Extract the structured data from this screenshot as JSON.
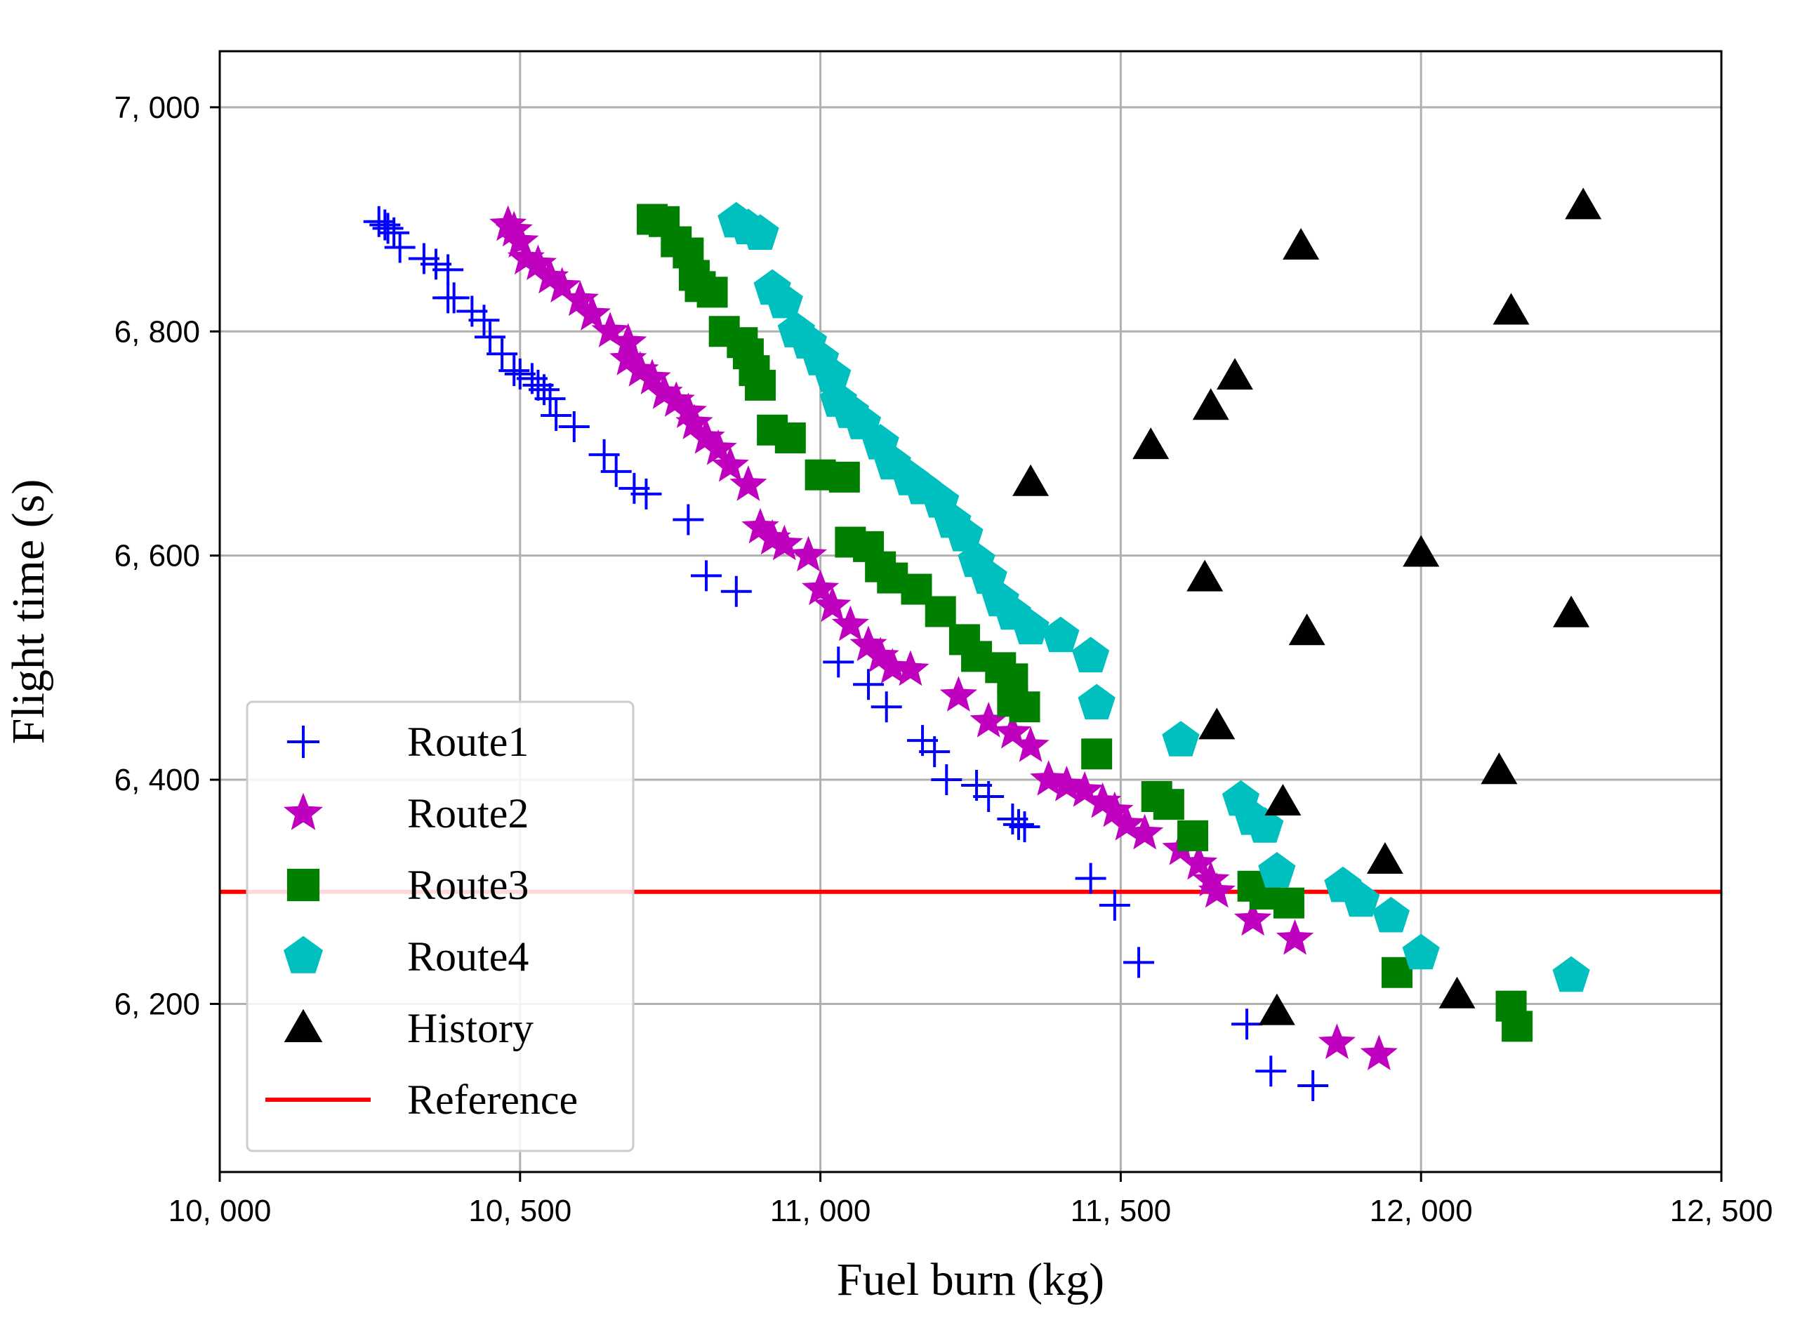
{
  "chart_data": {
    "type": "scatter",
    "xlabel": "Fuel burn (kg)",
    "ylabel": "Flight time (s)",
    "xlim": [
      10000,
      12500
    ],
    "ylim": [
      6050,
      7050
    ],
    "xticks": [
      10000,
      10500,
      11000,
      11500,
      12000,
      12500
    ],
    "yticks": [
      6200,
      6400,
      6600,
      6800,
      7000
    ],
    "xtick_labels": [
      "10, 000",
      "10, 500",
      "11, 000",
      "11, 500",
      "12, 000",
      "12, 500"
    ],
    "ytick_labels": [
      "6, 200",
      "6, 400",
      "6, 600",
      "6, 800",
      "7, 000"
    ],
    "grid": true,
    "legend_position": "lower-left",
    "series": [
      {
        "name": "Route1",
        "marker": "plus",
        "color": "#0000ff",
        "points": [
          [
            10265,
            6898
          ],
          [
            10275,
            6895
          ],
          [
            10280,
            6892
          ],
          [
            10290,
            6888
          ],
          [
            10300,
            6875
          ],
          [
            10340,
            6865
          ],
          [
            10360,
            6860
          ],
          [
            10380,
            6855
          ],
          [
            10380,
            6830
          ],
          [
            10390,
            6830
          ],
          [
            10420,
            6818
          ],
          [
            10440,
            6810
          ],
          [
            10450,
            6795
          ],
          [
            10470,
            6780
          ],
          [
            10490,
            6765
          ],
          [
            10500,
            6762
          ],
          [
            10520,
            6758
          ],
          [
            10530,
            6752
          ],
          [
            10540,
            6748
          ],
          [
            10550,
            6740
          ],
          [
            10560,
            6725
          ],
          [
            10590,
            6715
          ],
          [
            10640,
            6690
          ],
          [
            10660,
            6675
          ],
          [
            10690,
            6660
          ],
          [
            10710,
            6655
          ],
          [
            10780,
            6632
          ],
          [
            10810,
            6582
          ],
          [
            10860,
            6568
          ],
          [
            11030,
            6505
          ],
          [
            11080,
            6485
          ],
          [
            11110,
            6465
          ],
          [
            11170,
            6435
          ],
          [
            11190,
            6425
          ],
          [
            11210,
            6400
          ],
          [
            11260,
            6395
          ],
          [
            11280,
            6385
          ],
          [
            11320,
            6365
          ],
          [
            11330,
            6360
          ],
          [
            11340,
            6358
          ],
          [
            11450,
            6312
          ],
          [
            11490,
            6288
          ],
          [
            11530,
            6237
          ],
          [
            11710,
            6182
          ],
          [
            11750,
            6140
          ],
          [
            11820,
            6127
          ]
        ]
      },
      {
        "name": "Route2",
        "marker": "star",
        "color": "#bf00bf",
        "points": [
          [
            10480,
            6895
          ],
          [
            10490,
            6890
          ],
          [
            10500,
            6880
          ],
          [
            10510,
            6865
          ],
          [
            10530,
            6860
          ],
          [
            10550,
            6848
          ],
          [
            10570,
            6840
          ],
          [
            10600,
            6828
          ],
          [
            10620,
            6815
          ],
          [
            10650,
            6800
          ],
          [
            10680,
            6790
          ],
          [
            10680,
            6775
          ],
          [
            10700,
            6765
          ],
          [
            10720,
            6758
          ],
          [
            10740,
            6745
          ],
          [
            10760,
            6738
          ],
          [
            10780,
            6728
          ],
          [
            10790,
            6718
          ],
          [
            10810,
            6705
          ],
          [
            10830,
            6695
          ],
          [
            10850,
            6680
          ],
          [
            10880,
            6663
          ],
          [
            10900,
            6625
          ],
          [
            10920,
            6615
          ],
          [
            10940,
            6610
          ],
          [
            10980,
            6600
          ],
          [
            11000,
            6570
          ],
          [
            11020,
            6555
          ],
          [
            11050,
            6538
          ],
          [
            11080,
            6520
          ],
          [
            11100,
            6510
          ],
          [
            11120,
            6500
          ],
          [
            11150,
            6498
          ],
          [
            11230,
            6475
          ],
          [
            11280,
            6452
          ],
          [
            11320,
            6442
          ],
          [
            11350,
            6430
          ],
          [
            11380,
            6400
          ],
          [
            11410,
            6395
          ],
          [
            11440,
            6390
          ],
          [
            11470,
            6380
          ],
          [
            11490,
            6372
          ],
          [
            11510,
            6360
          ],
          [
            11540,
            6352
          ],
          [
            11600,
            6338
          ],
          [
            11630,
            6325
          ],
          [
            11650,
            6310
          ],
          [
            11660,
            6300
          ],
          [
            11720,
            6275
          ],
          [
            11790,
            6258
          ],
          [
            11860,
            6165
          ],
          [
            11930,
            6155
          ]
        ]
      },
      {
        "name": "Route3",
        "marker": "square",
        "color": "#008000",
        "points": [
          [
            10720,
            6900
          ],
          [
            10740,
            6898
          ],
          [
            10760,
            6880
          ],
          [
            10780,
            6870
          ],
          [
            10790,
            6850
          ],
          [
            10800,
            6840
          ],
          [
            10820,
            6835
          ],
          [
            10840,
            6800
          ],
          [
            10870,
            6790
          ],
          [
            10880,
            6780
          ],
          [
            10890,
            6765
          ],
          [
            10900,
            6752
          ],
          [
            10920,
            6712
          ],
          [
            10950,
            6705
          ],
          [
            11000,
            6672
          ],
          [
            11040,
            6670
          ],
          [
            11050,
            6612
          ],
          [
            11080,
            6608
          ],
          [
            11100,
            6590
          ],
          [
            11120,
            6580
          ],
          [
            11160,
            6570
          ],
          [
            11200,
            6550
          ],
          [
            11240,
            6525
          ],
          [
            11260,
            6510
          ],
          [
            11300,
            6500
          ],
          [
            11320,
            6490
          ],
          [
            11320,
            6470
          ],
          [
            11340,
            6465
          ],
          [
            11460,
            6423
          ],
          [
            11560,
            6385
          ],
          [
            11580,
            6378
          ],
          [
            11620,
            6350
          ],
          [
            11720,
            6305
          ],
          [
            11740,
            6298
          ],
          [
            11780,
            6290
          ],
          [
            11960,
            6228
          ],
          [
            12150,
            6198
          ],
          [
            12160,
            6180
          ]
        ]
      },
      {
        "name": "Route4",
        "marker": "pentagon",
        "color": "#00bfbf",
        "points": [
          [
            10860,
            6898
          ],
          [
            10880,
            6892
          ],
          [
            10900,
            6887
          ],
          [
            10920,
            6838
          ],
          [
            10940,
            6826
          ],
          [
            10960,
            6800
          ],
          [
            10980,
            6790
          ],
          [
            11000,
            6775
          ],
          [
            11020,
            6760
          ],
          [
            11030,
            6738
          ],
          [
            11050,
            6728
          ],
          [
            11070,
            6718
          ],
          [
            11100,
            6700
          ],
          [
            11120,
            6682
          ],
          [
            11150,
            6668
          ],
          [
            11170,
            6660
          ],
          [
            11200,
            6648
          ],
          [
            11220,
            6630
          ],
          [
            11240,
            6618
          ],
          [
            11260,
            6595
          ],
          [
            11280,
            6580
          ],
          [
            11300,
            6560
          ],
          [
            11320,
            6548
          ],
          [
            11350,
            6535
          ],
          [
            11400,
            6528
          ],
          [
            11450,
            6510
          ],
          [
            11460,
            6468
          ],
          [
            11600,
            6435
          ],
          [
            11700,
            6382
          ],
          [
            11720,
            6365
          ],
          [
            11740,
            6358
          ],
          [
            11760,
            6318
          ],
          [
            11870,
            6305
          ],
          [
            11900,
            6292
          ],
          [
            11950,
            6278
          ],
          [
            12000,
            6245
          ],
          [
            12250,
            6225
          ]
        ]
      },
      {
        "name": "History",
        "marker": "triangle",
        "color": "#000000",
        "points": [
          [
            12270,
            6912
          ],
          [
            11800,
            6876
          ],
          [
            12150,
            6818
          ],
          [
            11690,
            6760
          ],
          [
            11650,
            6733
          ],
          [
            11550,
            6698
          ],
          [
            11350,
            6665
          ],
          [
            12000,
            6602
          ],
          [
            11640,
            6580
          ],
          [
            12250,
            6548
          ],
          [
            11810,
            6532
          ],
          [
            11660,
            6448
          ],
          [
            12130,
            6408
          ],
          [
            11770,
            6380
          ],
          [
            11940,
            6328
          ],
          [
            12060,
            6208
          ],
          [
            11760,
            6193
          ]
        ]
      }
    ],
    "reference_line": {
      "name": "Reference",
      "y": 6300,
      "color": "#ff0000"
    }
  }
}
